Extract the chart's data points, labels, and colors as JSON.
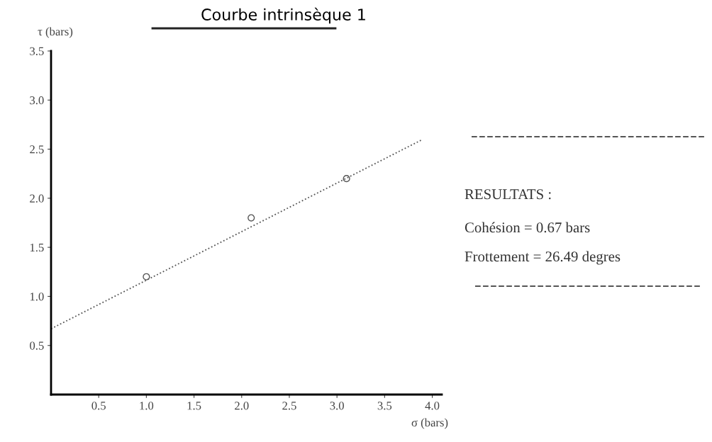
{
  "chart_data": {
    "type": "line",
    "title": "Courbe intrinsèque 1",
    "xlabel": "σ (bars)",
    "ylabel": "τ (bars)",
    "series": [
      {
        "color": "#555555",
        "x": [
          0,
          3.9
        ],
        "values": [
          0.67,
          2.6
        ],
        "line_style": "dotted",
        "marker": "none"
      },
      {
        "type": "scatter",
        "color": "#555555",
        "x": [
          1.0,
          2.1,
          3.1
        ],
        "values": [
          1.2,
          1.8,
          2.2
        ],
        "marker": "circle"
      }
    ],
    "xlim": [
      0,
      4.1
    ],
    "xticks": [
      0.5,
      {
        "value": 1,
        "label": "1.0"
      },
      1.5,
      {
        "value": 2,
        "label": "2.0"
      },
      2.5,
      {
        "value": 3,
        "label": "3.0"
      },
      3.5,
      {
        "value": 4,
        "label": "4.0"
      }
    ],
    "ylim": [
      0,
      3.5
    ],
    "yticks": [
      0.5,
      {
        "value": 1,
        "label": "1.0"
      },
      1.5,
      {
        "value": 2,
        "label": "2.0"
      },
      2.5,
      {
        "value": 3,
        "label": "3.0"
      },
      3.5
    ],
    "grid": false,
    "legend": false,
    "annotations": [
      "RESULTATS :",
      "Cohésion = 0.67 bars",
      "Frottement = 26.49 degres"
    ]
  }
}
